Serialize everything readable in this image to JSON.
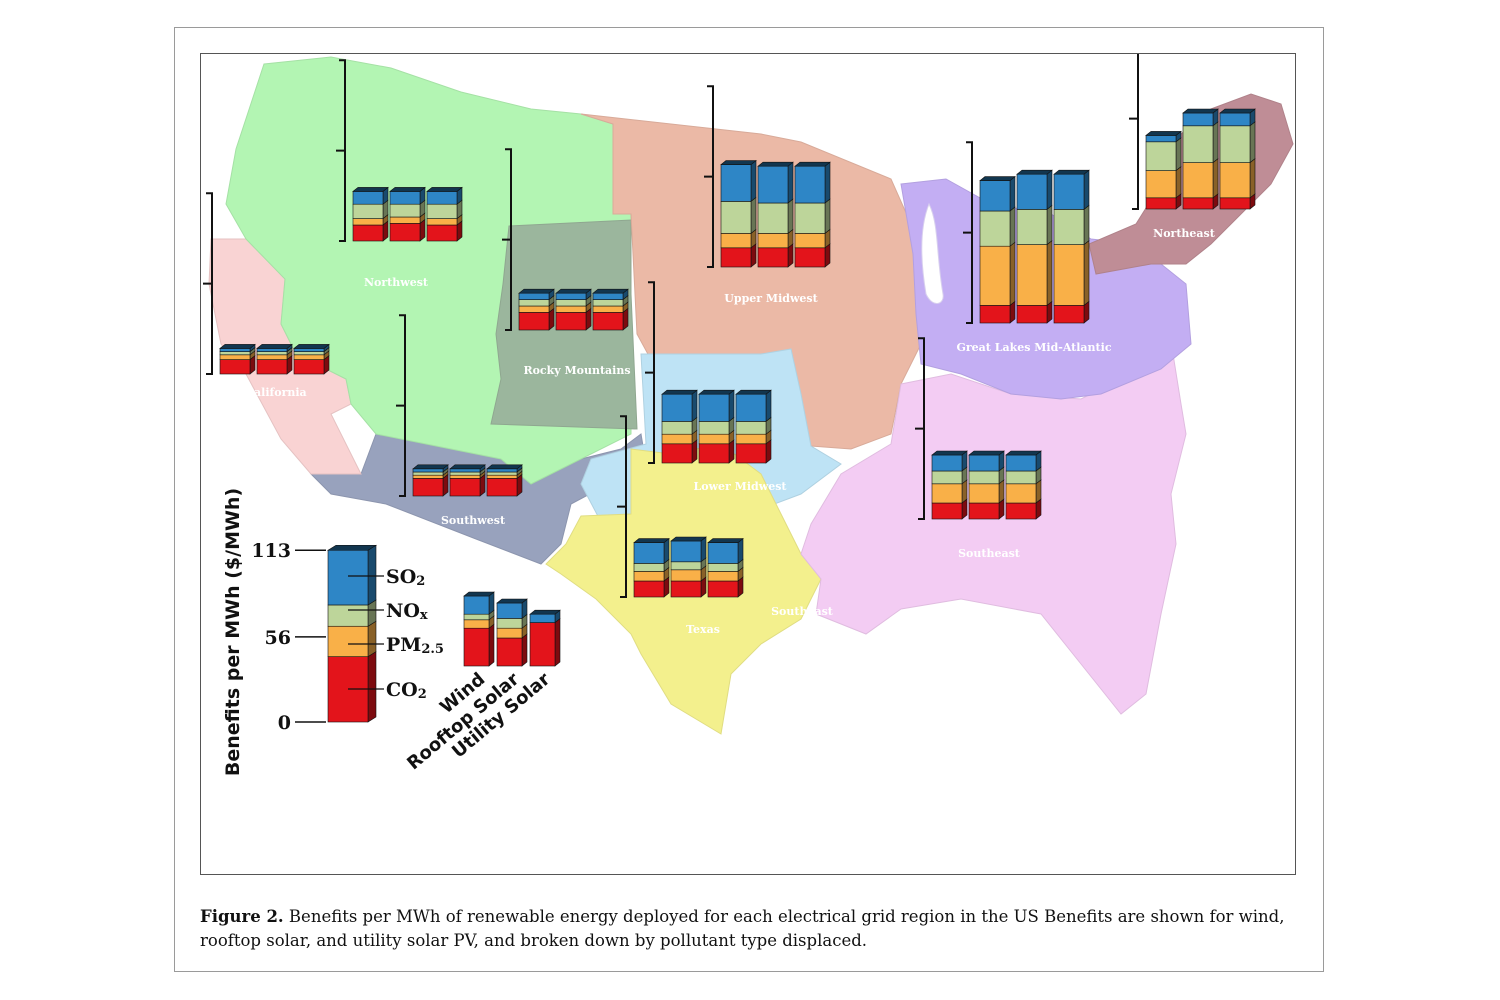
{
  "caption": {
    "label": "Figure 2.",
    "text": " Benefits per MWh of renewable energy deployed for each electrical grid region in the US Benefits are shown for wind, rooftop solar, and utility solar PV, and broken down by pollutant type displaced."
  },
  "region_labels": [
    {
      "key": "northwest",
      "text": "Northwest"
    },
    {
      "key": "california",
      "text": "California"
    },
    {
      "key": "rocky",
      "text": "Rocky Mountains"
    },
    {
      "key": "southwest",
      "text": "Southwest"
    },
    {
      "key": "upper_midwest",
      "text": "Upper Midwest"
    },
    {
      "key": "lower_midwest",
      "text": "Lower Midwest"
    },
    {
      "key": "texas",
      "text": "Texas"
    },
    {
      "key": "southeast_small",
      "text": "Southeast"
    },
    {
      "key": "southeast",
      "text": "Southeast"
    },
    {
      "key": "great_lakes",
      "text": "Great Lakes Mid-Atlantic"
    },
    {
      "key": "northeast",
      "text": "Northeast"
    }
  ],
  "region_colors": {
    "northwest": "#b3f5b3",
    "california": "#f9d3d3",
    "rocky": "#9bb69d",
    "southwest": "#98a2bd",
    "upper_midwest": "#ebb9a6",
    "lower_midwest": "#bee3f5",
    "texas": "#f3f08d",
    "southeast": "#f3ccf3",
    "great_lakes": "#c3aef3",
    "northeast": "#bf8d96"
  },
  "pollutant_colors": {
    "SO2": "#2e86c6",
    "NOx": "#bdd59a",
    "PM2.5": "#f9b048",
    "CO2": "#e3141b"
  },
  "chart_data": {
    "type": "bar",
    "stacked": true,
    "title": "",
    "ylabel": "Benefits per MWh ($/MWh)",
    "yticks": [
      "113",
      "56",
      "0"
    ],
    "ylim": [
      0,
      113
    ],
    "categories": [
      "Wind",
      "Rooftop Solar",
      "Utility Solar"
    ],
    "stack_order": [
      "CO2",
      "PM2.5",
      "NOx",
      "SO2"
    ],
    "legend": {
      "entries": [
        {
          "key": "SO2",
          "base": "SO",
          "sub": "2"
        },
        {
          "key": "NOx",
          "base": "NO",
          "sub": "x"
        },
        {
          "key": "PM2.5",
          "base": "PM",
          "sub": "2.5"
        },
        {
          "key": "CO2",
          "base": "CO",
          "sub": "2"
        }
      ],
      "key_bar": {
        "CO2": 43,
        "PM2.5": 20,
        "NOx": 14,
        "SO2": 36
      },
      "example_bars": [
        {
          "CO2": 27,
          "PM2.5": 6,
          "NOx": 4,
          "SO2": 13
        },
        {
          "CO2": 20,
          "PM2.5": 7,
          "NOx": 7,
          "SO2": 11
        },
        {
          "CO2": 31,
          "PM2.5": 0,
          "NOx": 0,
          "SO2": 6
        }
      ]
    },
    "regions": [
      {
        "key": "northwest",
        "bars": [
          {
            "CO2": 10,
            "PM2.5": 4,
            "NOx": 9,
            "SO2": 8
          },
          {
            "CO2": 11,
            "PM2.5": 4,
            "NOx": 8,
            "SO2": 8
          },
          {
            "CO2": 10,
            "PM2.5": 4,
            "NOx": 9,
            "SO2": 8
          }
        ]
      },
      {
        "key": "california",
        "bars": [
          {
            "CO2": 9,
            "PM2.5": 3,
            "NOx": 2,
            "SO2": 2
          },
          {
            "CO2": 9,
            "PM2.5": 3,
            "NOx": 2,
            "SO2": 2
          },
          {
            "CO2": 9,
            "PM2.5": 3,
            "NOx": 2,
            "SO2": 2
          }
        ]
      },
      {
        "key": "rocky",
        "bars": [
          {
            "CO2": 11,
            "PM2.5": 4,
            "NOx": 4,
            "SO2": 4
          },
          {
            "CO2": 11,
            "PM2.5": 4,
            "NOx": 4,
            "SO2": 4
          },
          {
            "CO2": 11,
            "PM2.5": 4,
            "NOx": 4,
            "SO2": 4
          }
        ]
      },
      {
        "key": "southwest",
        "bars": [
          {
            "CO2": 11,
            "PM2.5": 2,
            "NOx": 2,
            "SO2": 2
          },
          {
            "CO2": 11,
            "PM2.5": 2,
            "NOx": 2,
            "SO2": 2
          },
          {
            "CO2": 11,
            "PM2.5": 2,
            "NOx": 2,
            "SO2": 2
          }
        ]
      },
      {
        "key": "upper_midwest",
        "bars": [
          {
            "CO2": 12,
            "PM2.5": 9,
            "NOx": 20,
            "SO2": 23
          },
          {
            "CO2": 12,
            "PM2.5": 9,
            "NOx": 19,
            "SO2": 23
          },
          {
            "CO2": 12,
            "PM2.5": 9,
            "NOx": 19,
            "SO2": 23
          }
        ]
      },
      {
        "key": "lower_midwest",
        "bars": [
          {
            "CO2": 12,
            "PM2.5": 6,
            "NOx": 8,
            "SO2": 17
          },
          {
            "CO2": 12,
            "PM2.5": 6,
            "NOx": 8,
            "SO2": 17
          },
          {
            "CO2": 12,
            "PM2.5": 6,
            "NOx": 8,
            "SO2": 17
          }
        ]
      },
      {
        "key": "texas",
        "bars": [
          {
            "CO2": 10,
            "PM2.5": 6,
            "NOx": 5,
            "SO2": 13
          },
          {
            "CO2": 10,
            "PM2.5": 7,
            "NOx": 5,
            "SO2": 13
          },
          {
            "CO2": 10,
            "PM2.5": 6,
            "NOx": 5,
            "SO2": 13
          }
        ]
      },
      {
        "key": "great_lakes",
        "bars": [
          {
            "CO2": 11,
            "PM2.5": 37,
            "NOx": 22,
            "SO2": 19
          },
          {
            "CO2": 11,
            "PM2.5": 38,
            "NOx": 22,
            "SO2": 22
          },
          {
            "CO2": 11,
            "PM2.5": 38,
            "NOx": 22,
            "SO2": 22
          }
        ]
      },
      {
        "key": "southeast",
        "bars": [
          {
            "CO2": 10,
            "PM2.5": 12,
            "NOx": 8,
            "SO2": 10
          },
          {
            "CO2": 10,
            "PM2.5": 12,
            "NOx": 8,
            "SO2": 10
          },
          {
            "CO2": 10,
            "PM2.5": 12,
            "NOx": 8,
            "SO2": 10
          }
        ]
      },
      {
        "key": "northeast",
        "bars": [
          {
            "CO2": 7,
            "PM2.5": 17,
            "NOx": 18,
            "SO2": 4
          },
          {
            "CO2": 7,
            "PM2.5": 22,
            "NOx": 23,
            "SO2": 8
          },
          {
            "CO2": 7,
            "PM2.5": 22,
            "NOx": 23,
            "SO2": 8
          }
        ]
      }
    ]
  }
}
